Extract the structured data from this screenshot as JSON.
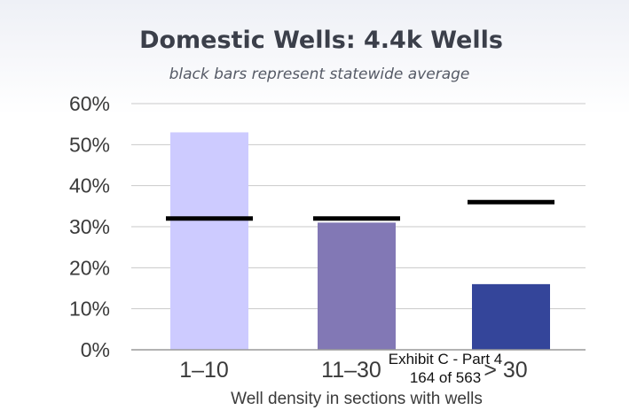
{
  "chart_data": {
    "type": "bar",
    "title": "Domestic Wells: 4.4k Wells",
    "subtitle": "black bars represent statewide average",
    "xlabel": "Well density in sections with wells",
    "ylabel": "",
    "categories": [
      "1–10",
      "11–30",
      "> 30"
    ],
    "values": [
      53,
      31,
      16
    ],
    "statewide_average": [
      32,
      32,
      36
    ],
    "bar_colors": [
      "#cdcbff",
      "#8278b5",
      "#34459a"
    ],
    "avg_color": "#000000",
    "ylim": [
      0,
      60
    ],
    "yticks": [
      0,
      10,
      20,
      30,
      40,
      50,
      60
    ],
    "ytick_labels": [
      "0%",
      "10%",
      "20%",
      "30%",
      "40%",
      "50%",
      "60%"
    ],
    "grid": true,
    "legend": "none"
  },
  "stamp": {
    "line1": "Exhibit C - Part 4",
    "line2": "164 of 563"
  }
}
